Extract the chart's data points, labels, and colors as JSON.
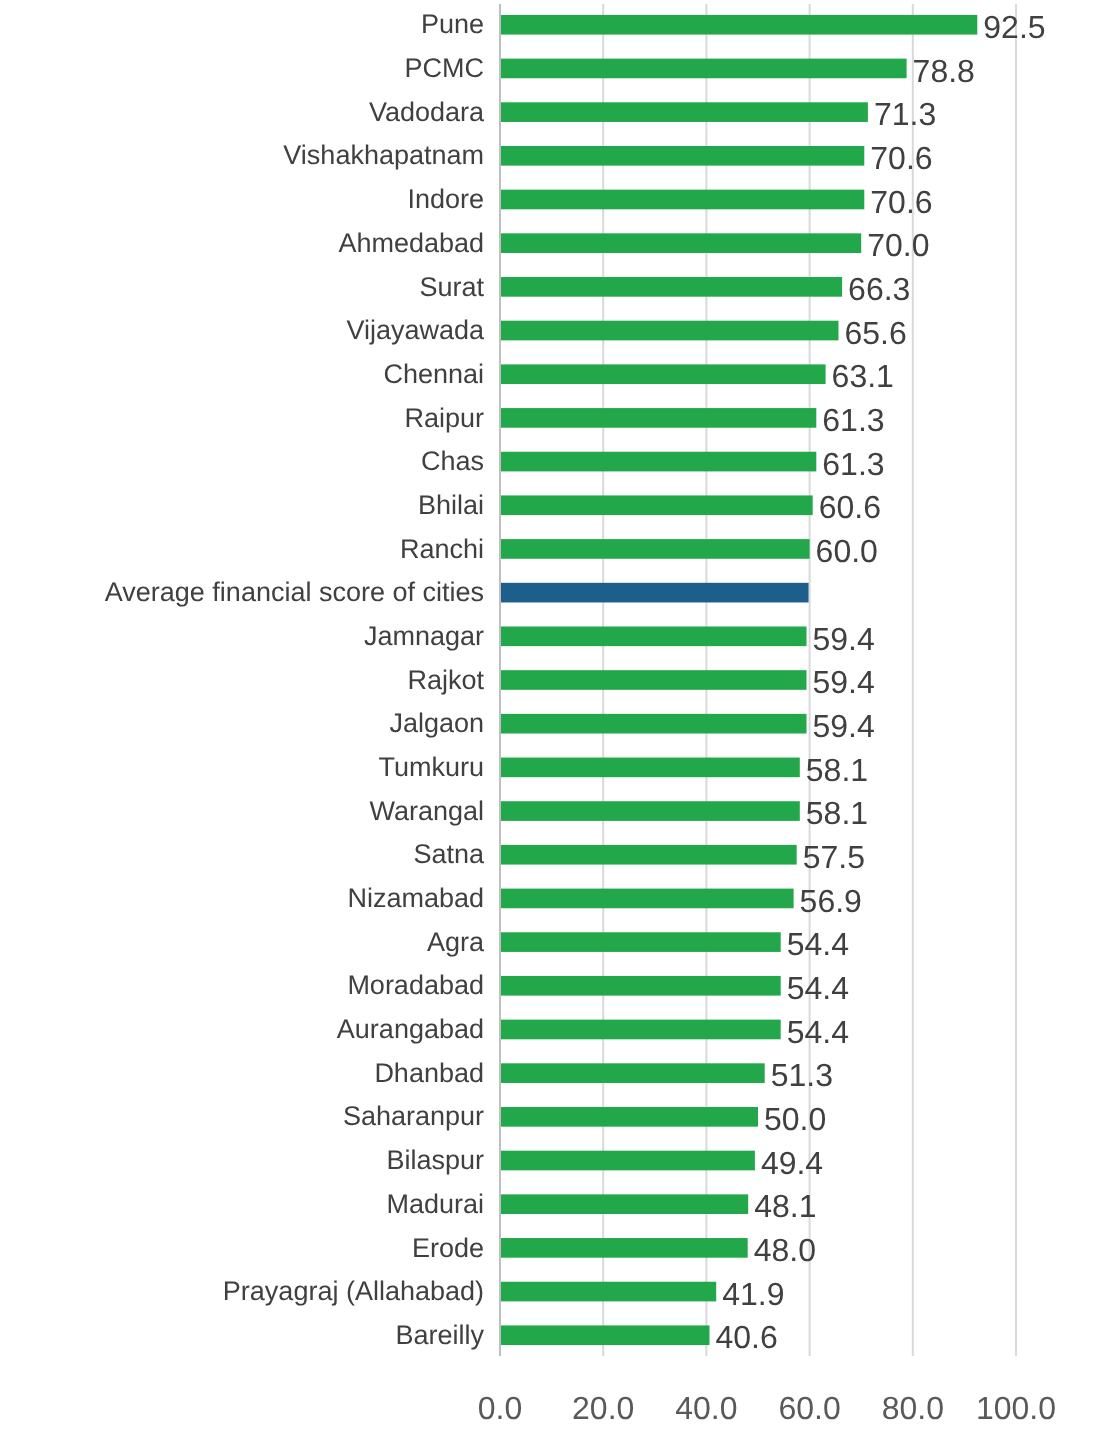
{
  "chart_data": {
    "type": "bar",
    "orientation": "horizontal",
    "categories": [
      "Pune",
      "PCMC",
      "Vadodara",
      "Vishakhapatnam",
      "Indore",
      "Ahmedabad",
      "Surat",
      "Vijayawada",
      "Chennai",
      "Raipur",
      "Chas",
      "Bhilai",
      "Ranchi",
      "Average financial score of cities",
      "Jamnagar",
      "Rajkot",
      "Jalgaon",
      "Tumkuru",
      "Warangal",
      "Satna",
      "Nizamabad",
      "Agra",
      "Moradabad",
      "Aurangabad",
      "Dhanbad",
      "Saharanpur",
      "Bilaspur",
      "Madurai",
      "Erode",
      "Prayagraj (Allahabad)",
      "Bareilly"
    ],
    "values": [
      92.5,
      78.8,
      71.3,
      70.6,
      70.6,
      70.0,
      66.3,
      65.6,
      63.1,
      61.3,
      61.3,
      60.6,
      60.0,
      59.8,
      59.4,
      59.4,
      59.4,
      58.1,
      58.1,
      57.5,
      56.9,
      54.4,
      54.4,
      54.4,
      51.3,
      50.0,
      49.4,
      48.1,
      48.0,
      41.9,
      40.6
    ],
    "colors": [
      "#22a84a",
      "#22a84a",
      "#22a84a",
      "#22a84a",
      "#22a84a",
      "#22a84a",
      "#22a84a",
      "#22a84a",
      "#22a84a",
      "#22a84a",
      "#22a84a",
      "#22a84a",
      "#22a84a",
      "#1d5f8a",
      "#22a84a",
      "#22a84a",
      "#22a84a",
      "#22a84a",
      "#22a84a",
      "#22a84a",
      "#22a84a",
      "#22a84a",
      "#22a84a",
      "#22a84a",
      "#22a84a",
      "#22a84a",
      "#22a84a",
      "#22a84a",
      "#22a84a",
      "#22a84a",
      "#22a84a"
    ],
    "value_labels": [
      "92.5",
      "78.8",
      "71.3",
      "70.6",
      "70.6",
      "70.0",
      "66.3",
      "65.6",
      "63.1",
      "61.3",
      "61.3",
      "60.6",
      "60.0",
      null,
      "59.4",
      "59.4",
      "59.4",
      "58.1",
      "58.1",
      "57.5",
      "56.9",
      "54.4",
      "54.4",
      "54.4",
      "51.3",
      "50.0",
      "49.4",
      "48.1",
      "48.0",
      "41.9",
      "40.6"
    ],
    "xlim": [
      0,
      100
    ],
    "xticks": [
      {
        "value": 0,
        "label": "0.0"
      },
      {
        "value": 20,
        "label": "20.0"
      },
      {
        "value": 40,
        "label": "40.0"
      },
      {
        "value": 60,
        "label": "60.0"
      },
      {
        "value": 80,
        "label": "80.0"
      },
      {
        "value": 100,
        "label": "100.0"
      }
    ],
    "grid": "x"
  }
}
